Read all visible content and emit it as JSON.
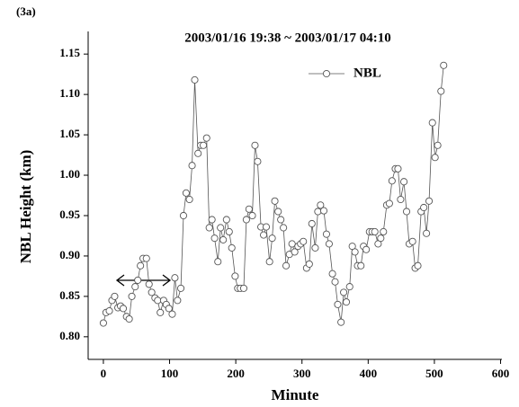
{
  "chart_data": {
    "type": "line",
    "panel_label": "(3a)",
    "title": "2003/01/16 19:38 ~ 2003/01/17 04:10",
    "x_label": "Minute",
    "y_label": "NBL Height (km)",
    "legend_position": "upper right",
    "xlim": [
      -23,
      602
    ],
    "xticks": [
      0,
      100,
      200,
      300,
      400,
      500,
      600
    ],
    "ylim": [
      0.772,
      1.178
    ],
    "yticks": [
      {
        "value": 0.8,
        "label": "0.80"
      },
      0.85,
      {
        "value": 0.9,
        "label": "0.90"
      },
      0.95,
      {
        "value": 1.0,
        "label": "1.00"
      },
      1.05,
      {
        "value": 1.1,
        "label": "1.10"
      },
      1.15
    ],
    "x": [
      0,
      4,
      9,
      13,
      17,
      22,
      26,
      30,
      35,
      39,
      43,
      48,
      52,
      56,
      60,
      65,
      69,
      73,
      78,
      82,
      86,
      91,
      95,
      99,
      104,
      108,
      112,
      117,
      121,
      125,
      130,
      134,
      138,
      143,
      147,
      151,
      156,
      160,
      164,
      168,
      173,
      177,
      181,
      186,
      190,
      194,
      199,
      203,
      207,
      212,
      216,
      220,
      225,
      229,
      233,
      238,
      242,
      246,
      251,
      255,
      259,
      264,
      268,
      272,
      276,
      281,
      285,
      289,
      294,
      298,
      302,
      307,
      311,
      315,
      320,
      324,
      328,
      333,
      337,
      341,
      346,
      350,
      354,
      359,
      363,
      367,
      372,
      376,
      380,
      384,
      389,
      393,
      397,
      402,
      406,
      410,
      415,
      419,
      423,
      428,
      432,
      436,
      441,
      445,
      449,
      454,
      458,
      462,
      467,
      471,
      475,
      480,
      484,
      488,
      492,
      497,
      501,
      505,
      510,
      514
    ],
    "series": [
      {
        "name": "NBL",
        "color": "#555555",
        "values": [
          0.817,
          0.83,
          0.832,
          0.845,
          0.85,
          0.836,
          0.838,
          0.835,
          0.825,
          0.822,
          0.85,
          0.862,
          0.87,
          0.888,
          0.897,
          0.897,
          0.865,
          0.855,
          0.848,
          0.845,
          0.83,
          0.845,
          0.84,
          0.835,
          0.828,
          0.873,
          0.845,
          0.86,
          0.95,
          0.978,
          0.97,
          1.012,
          1.118,
          1.027,
          1.037,
          1.037,
          1.046,
          0.935,
          0.945,
          0.922,
          0.893,
          0.935,
          0.92,
          0.945,
          0.93,
          0.91,
          0.875,
          0.86,
          0.86,
          0.86,
          0.945,
          0.958,
          0.95,
          1.037,
          1.017,
          0.936,
          0.926,
          0.936,
          0.893,
          0.922,
          0.968,
          0.955,
          0.945,
          0.935,
          0.888,
          0.902,
          0.915,
          0.905,
          0.912,
          0.915,
          0.918,
          0.885,
          0.89,
          0.94,
          0.91,
          0.955,
          0.963,
          0.956,
          0.927,
          0.915,
          0.878,
          0.868,
          0.84,
          0.818,
          0.855,
          0.843,
          0.862,
          0.912,
          0.905,
          0.888,
          0.888,
          0.912,
          0.908,
          0.93,
          0.93,
          0.93,
          0.915,
          0.922,
          0.93,
          0.963,
          0.965,
          0.993,
          1.008,
          1.008,
          0.97,
          0.992,
          0.955,
          0.915,
          0.918,
          0.885,
          0.888,
          0.955,
          0.96,
          0.928,
          0.968,
          1.065,
          1.022,
          1.037,
          1.104,
          1.136
        ]
      }
    ]
  }
}
